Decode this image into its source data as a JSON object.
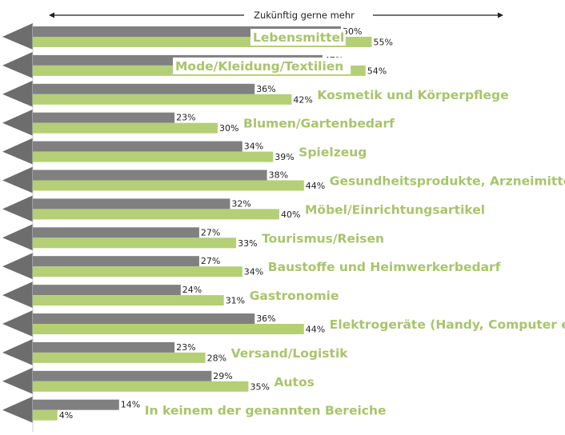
{
  "chart_data": {
    "type": "bar",
    "orientation": "horizontal",
    "title": "Zukünftig gerne mehr",
    "xlim": [
      0,
      60
    ],
    "categories": [
      "Lebensmittel",
      "Mode/Kleidung/Textilien",
      "Kosmetik und Körperpflege",
      "Blumen/Gartenbedarf",
      "Spielzeug",
      "Gesundheitsprodukte, Arzneimittel",
      "Möbel/Einrichtungsartikel",
      "Tourismus/Reisen",
      "Baustoffe und Heimwerkerbedarf",
      "Gastronomie",
      "Elektrogeräte (Handy, Computer etc.)",
      "Versand/Logistik",
      "Autos",
      "In keinem der genannten Bereiche"
    ],
    "series": [
      {
        "name": "series-gray",
        "color": "#808080",
        "values": [
          50,
          47,
          36,
          23,
          34,
          38,
          32,
          27,
          27,
          24,
          36,
          23,
          29,
          14
        ],
        "labels": [
          "50%",
          "47%",
          "36%",
          "23%",
          "34%",
          "38%",
          "32%",
          "27%",
          "27%",
          "24%",
          "36%",
          "23%",
          "29%",
          "14%"
        ]
      },
      {
        "name": "series-green",
        "color": "#b5cf76",
        "values": [
          55,
          54,
          42,
          30,
          39,
          44,
          40,
          33,
          34,
          31,
          44,
          28,
          35,
          4
        ],
        "labels": [
          "55%",
          "54%",
          "42%",
          "30%",
          "39%",
          "44%",
          "40%",
          "33%",
          "34%",
          "31%",
          "44%",
          "28%",
          "35%",
          "4%"
        ]
      }
    ],
    "label_color": "#a9c46c",
    "arrow_color": "#6d6d6d"
  }
}
